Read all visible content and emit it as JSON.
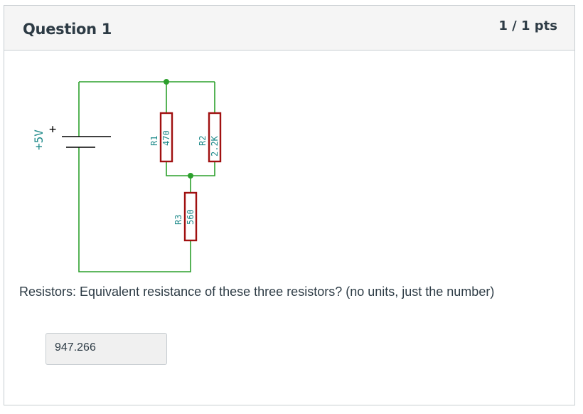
{
  "question": {
    "title": "Question 1",
    "points": "1 / 1 pts",
    "text": "Resistors: Equivalent resistance of these three resistors?   (no units, just the number)",
    "answer_value": "947.266"
  },
  "circuit": {
    "source_label": "+5V",
    "source_polarity": "+",
    "resistors": [
      {
        "ref": "R1",
        "value": "470"
      },
      {
        "ref": "R2",
        "value": "2.2K"
      },
      {
        "ref": "R3",
        "value": "560"
      }
    ],
    "colors": {
      "wire": "#2ca02c",
      "node": "#2ca02c",
      "resistor": "#a01010",
      "source": "#000000",
      "label": "#1f8a8a"
    }
  }
}
